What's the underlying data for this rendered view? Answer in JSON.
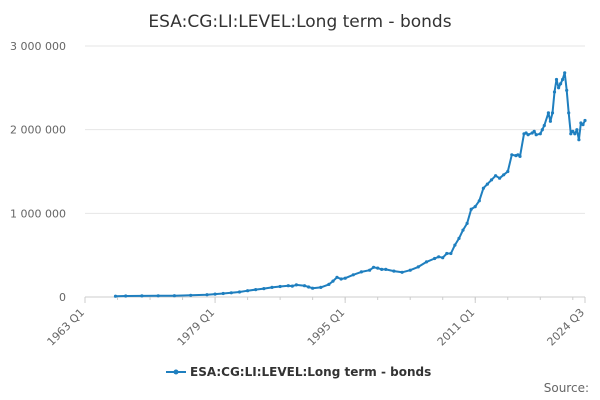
{
  "chart_data": {
    "type": "line",
    "title": "ESA:CG:LI:LEVEL:Long term - bonds",
    "source_label": "Source:",
    "ylim": [
      0,
      3000000
    ],
    "y_ticks": [
      {
        "value": 0,
        "label": "0"
      },
      {
        "value": 1000000,
        "label": "1 000 000"
      },
      {
        "value": 2000000,
        "label": "2 000 000"
      },
      {
        "value": 3000000,
        "label": "3 000 000"
      }
    ],
    "x_ticks": [
      {
        "value": 1963.0,
        "label": "1963 Q1"
      },
      {
        "value": 1979.0,
        "label": "1979 Q1"
      },
      {
        "value": 1995.0,
        "label": "1995 Q1"
      },
      {
        "value": 2011.0,
        "label": "2011 Q1"
      },
      {
        "value": 2024.5,
        "label": "2024 Q3"
      }
    ],
    "xlim": [
      1963.0,
      2024.5
    ],
    "grid": true,
    "legend_position": "bottom",
    "color": "#1f7fbf",
    "series": [
      {
        "name": "ESA:CG:LI:LEVEL:Long term - bonds",
        "x": [
          1966.75,
          1968,
          1970,
          1972,
          1974,
          1976,
          1978,
          1979,
          1980,
          1981,
          1982,
          1983,
          1984,
          1985,
          1986,
          1987,
          1988,
          1988.5,
          1989,
          1990,
          1990.5,
          1991,
          1992,
          1993,
          1993.5,
          1994,
          1994.5,
          1995,
          1996,
          1997,
          1998,
          1998.5,
          1999,
          1999.5,
          2000,
          2001,
          2002,
          2003,
          2004,
          2005,
          2006,
          2006.5,
          2007,
          2007.5,
          2008,
          2008.5,
          2009,
          2009.5,
          2010,
          2010.5,
          2011,
          2011.5,
          2012,
          2012.5,
          2013,
          2013.5,
          2014,
          2014.5,
          2015,
          2015.5,
          2016,
          2016.25,
          2016.5,
          2017,
          2017.25,
          2017.5,
          2018,
          2018.25,
          2018.5,
          2019,
          2019.25,
          2019.5,
          2020,
          2020.25,
          2020.5,
          2020.75,
          2021,
          2021.25,
          2021.5,
          2021.75,
          2022,
          2022.25,
          2022.5,
          2022.75,
          2023,
          2023.25,
          2023.5,
          2023.75,
          2024,
          2024.25,
          2024.5
        ],
        "y": [
          10000,
          12000,
          13000,
          14000,
          16000,
          20000,
          27000,
          35000,
          42000,
          50000,
          60000,
          75000,
          88000,
          100000,
          115000,
          125000,
          135000,
          130000,
          145000,
          135000,
          120000,
          105000,
          115000,
          150000,
          190000,
          235000,
          215000,
          225000,
          265000,
          300000,
          320000,
          355000,
          345000,
          330000,
          330000,
          310000,
          295000,
          320000,
          360000,
          420000,
          460000,
          480000,
          470000,
          520000,
          520000,
          620000,
          700000,
          800000,
          880000,
          1050000,
          1080000,
          1150000,
          1300000,
          1350000,
          1400000,
          1450000,
          1420000,
          1460000,
          1500000,
          1700000,
          1690000,
          1700000,
          1680000,
          1950000,
          1960000,
          1940000,
          1960000,
          1980000,
          1940000,
          1950000,
          2000000,
          2050000,
          2200000,
          2100000,
          2200000,
          2450000,
          2600000,
          2500000,
          2550000,
          2600000,
          2680000,
          2470000,
          2200000,
          1950000,
          1980000,
          1950000,
          2000000,
          1880000,
          2080000,
          2060000,
          2110000
        ]
      }
    ]
  }
}
